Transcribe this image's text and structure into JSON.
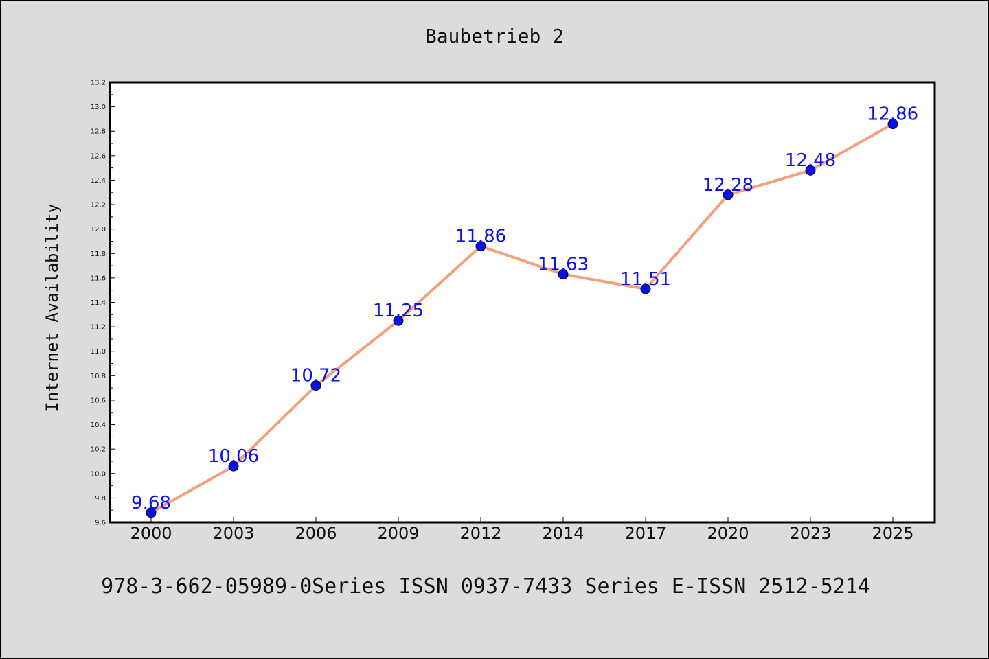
{
  "chart_data": {
    "type": "line",
    "title": "Baubetrieb 2",
    "xlabel": "",
    "ylabel": "Internet Availability",
    "categories": [
      "2000",
      "2003",
      "2006",
      "2009",
      "2012",
      "2014",
      "2017",
      "2020",
      "2023",
      "2025"
    ],
    "series": [
      {
        "values": [
          9.68,
          10.06,
          10.72,
          11.25,
          11.86,
          11.63,
          11.51,
          12.28,
          12.48,
          12.86
        ],
        "data_labels": [
          "9.68",
          "10.06",
          "10.72",
          "11.25",
          "11.86",
          "11.63",
          "11.51",
          "12.28",
          "12.48",
          "12.86"
        ],
        "line_color": "#f4a07c",
        "marker_color": "#0a10ee"
      }
    ],
    "ylim": [
      9.6,
      13.2
    ],
    "yticks": [
      "9.6",
      "9.8",
      "10.0",
      "10.2",
      "10.4",
      "10.6",
      "10.8",
      "11.0",
      "11.2",
      "11.4",
      "11.6",
      "11.8",
      "12.0",
      "12.2",
      "12.4",
      "12.6",
      "12.8",
      "13.0",
      "13.2"
    ],
    "grid": false,
    "legend": "none"
  },
  "footer": "978-3-662-05989-0Series ISSN 0937-7433 Series E-ISSN 2512-5214",
  "colors": {
    "background": "#dcdcdc",
    "plot_background": "#ffffff",
    "line": "#f4a07c",
    "marker": "#0a10ee",
    "label": "#0a10ee"
  }
}
